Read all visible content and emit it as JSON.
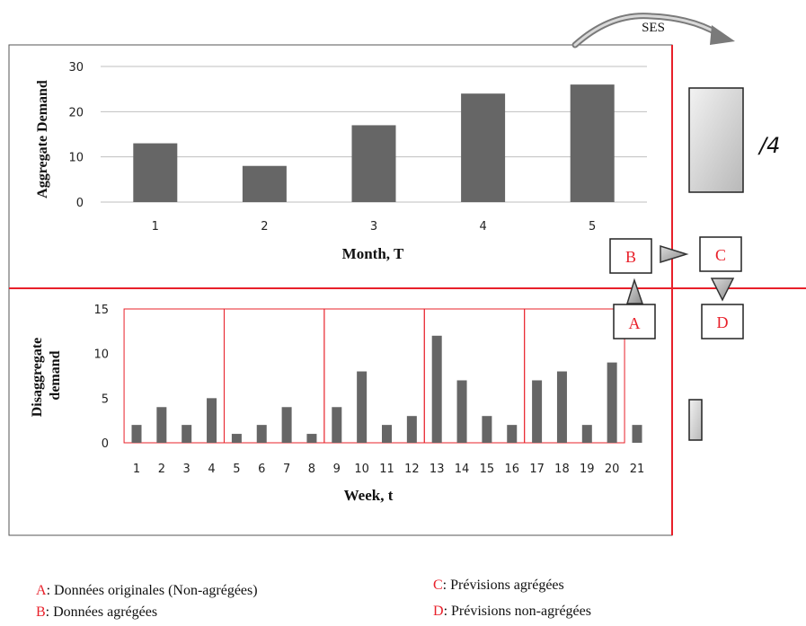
{
  "annotation": {
    "ses_label": "SES",
    "divide_label": "/4",
    "box_a": "A",
    "box_b": "B",
    "box_c": "C",
    "box_d": "D"
  },
  "legend": [
    {
      "key": "A",
      "text": ": Données originales (Non-agrégées)"
    },
    {
      "key": "B",
      "text": ": Données agrégées"
    },
    {
      "key": "C",
      "text": ": Prévisions agrégées"
    },
    {
      "key": "D",
      "text": ": Prévisions non-agrégées"
    }
  ],
  "colors": {
    "bar": "#666666",
    "red": "#e8202a",
    "grid": "#bfbfbf",
    "axis_text": "#222222"
  },
  "chart_data": [
    {
      "type": "bar",
      "categories": [
        "1",
        "2",
        "3",
        "4",
        "5"
      ],
      "values": [
        13,
        8,
        17,
        24,
        26
      ],
      "title": "",
      "xlabel": "Month, T",
      "ylabel": "Aggregate Demand",
      "ylim": [
        0,
        30
      ],
      "yticks": [
        0,
        10,
        20,
        30
      ]
    },
    {
      "type": "bar",
      "categories": [
        "1",
        "2",
        "3",
        "4",
        "5",
        "6",
        "7",
        "8",
        "9",
        "10",
        "11",
        "12",
        "13",
        "14",
        "15",
        "16",
        "17",
        "18",
        "19",
        "20",
        "21"
      ],
      "values": [
        2,
        4,
        2,
        5,
        1,
        2,
        4,
        1,
        4,
        8,
        2,
        3,
        12,
        7,
        3,
        2,
        7,
        8,
        2,
        9,
        2
      ],
      "title": "",
      "xlabel": "Week, t",
      "ylabel": "Disaggregate demand",
      "ylim": [
        0,
        15
      ],
      "yticks": [
        0,
        5,
        10,
        15
      ],
      "groups": [
        [
          1,
          4
        ],
        [
          5,
          8
        ],
        [
          9,
          12
        ],
        [
          13,
          16
        ],
        [
          17,
          20
        ]
      ]
    }
  ]
}
